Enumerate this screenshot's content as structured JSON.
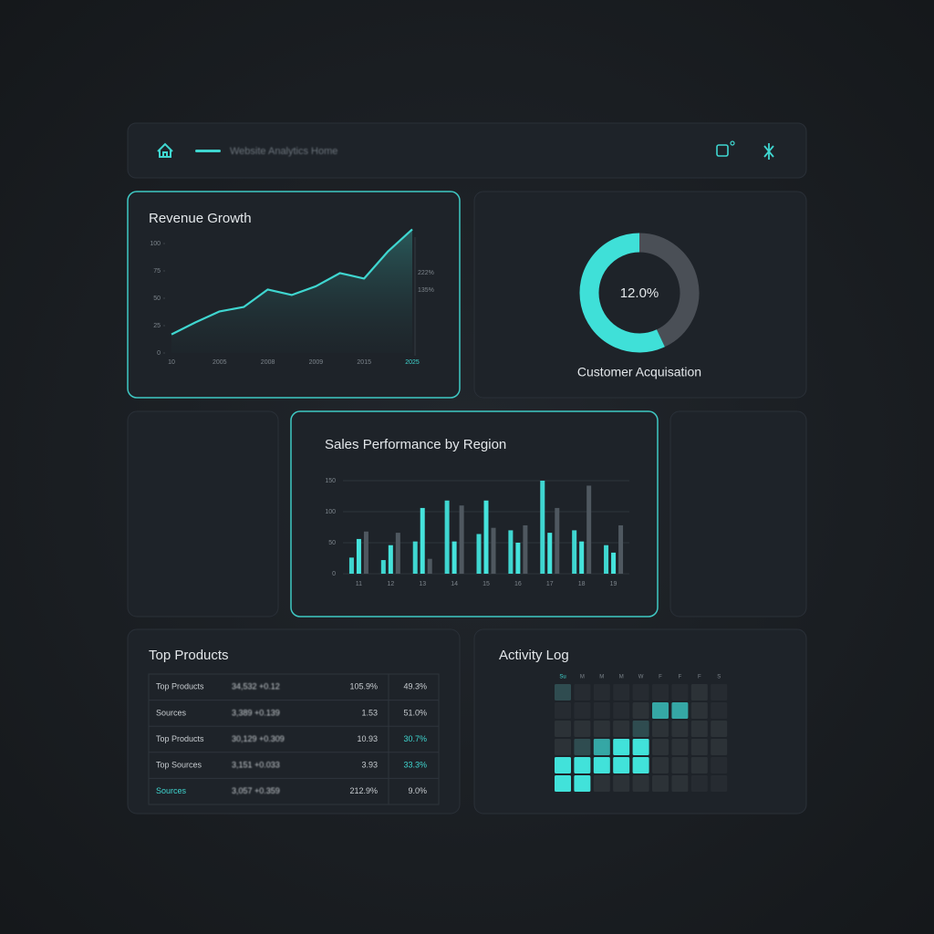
{
  "header": {
    "breadcrumb": "Website Analytics Home"
  },
  "revenue": {
    "title": "Revenue Growth",
    "chart_data": {
      "type": "line",
      "values": [
        17,
        28,
        38,
        42,
        58,
        53,
        61,
        73,
        68,
        93,
        113
      ],
      "color": "#3fd6d0",
      "ylim": [
        0,
        115
      ],
      "yticks": [
        0,
        25,
        50,
        75,
        100
      ],
      "xticks": [
        "10",
        "2005",
        "2008",
        "2009",
        "2015",
        "2025"
      ],
      "annotations": [
        "222%",
        "135%"
      ]
    }
  },
  "acquisition": {
    "chart_data": {
      "type": "pie",
      "values": [
        43,
        57
      ],
      "colors": [
        "#4a4f56",
        "#3fe0d8"
      ],
      "center_label": "12.0%",
      "caption": "Customer Acquisation"
    }
  },
  "sales": {
    "title": "Sales Performance by Region",
    "chart_data": {
      "type": "bar",
      "categories": [
        "11",
        "12",
        "13",
        "14",
        "15",
        "16",
        "17",
        "18",
        "19"
      ],
      "series": [
        {
          "color": "#3fd6d0",
          "values": [
            26,
            22,
            52,
            118,
            64,
            70,
            150,
            70,
            46
          ]
        },
        {
          "color": "#45e3dc",
          "values": [
            56,
            46,
            106,
            52,
            118,
            50,
            66,
            52,
            34
          ]
        },
        {
          "color": "#4f5860",
          "values": [
            68,
            66,
            24,
            110,
            74,
            78,
            106,
            142,
            78
          ]
        }
      ],
      "ylim": [
        0,
        160
      ],
      "yticks": [
        0,
        50,
        100,
        150
      ]
    }
  },
  "products": {
    "title": "Top Products",
    "table": {
      "rows": [
        [
          "Top Products",
          "34,532 +0.12",
          "105.9%",
          "49.3%"
        ],
        [
          "Sources",
          "3,389 +0.139",
          "1.53",
          "51.0%"
        ],
        [
          "Top Products",
          "30,129 +0.309",
          "10.93",
          "30.7%"
        ],
        [
          "Top Sources",
          "3,151 +0.033",
          "3.93",
          "33.3%"
        ],
        [
          "Sources",
          "3,057 +0.359",
          "212.9%",
          "9.0%"
        ]
      ]
    }
  },
  "activity": {
    "title": "Activity Log",
    "days": [
      "Su",
      "M",
      "M",
      "M",
      "W",
      "F",
      "F",
      "F",
      "S"
    ],
    "levels": [
      [
        2,
        0,
        0,
        0,
        0,
        0,
        0,
        1,
        0
      ],
      [
        0,
        0,
        0,
        0,
        1,
        3,
        3,
        1,
        0
      ],
      [
        1,
        1,
        1,
        1,
        2,
        1,
        1,
        1,
        1
      ],
      [
        1,
        2,
        3,
        4,
        4,
        1,
        1,
        1,
        1
      ],
      [
        4,
        4,
        4,
        4,
        4,
        1,
        1,
        1,
        0
      ],
      [
        4,
        4,
        1,
        1,
        1,
        1,
        1,
        0,
        0
      ]
    ]
  }
}
